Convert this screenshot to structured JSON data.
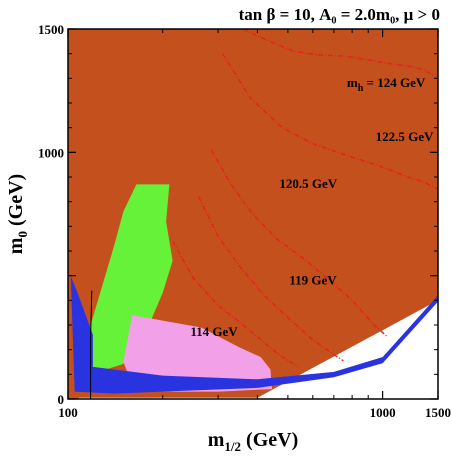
{
  "chart_data": {
    "type": "contour",
    "title": "tan β = 10, A₀ = 2.0m₀,  μ > 0",
    "xlabel": "m1/2 (GeV)",
    "xlabel_main": "m",
    "xlabel_sub": "1/2",
    "xlabel_unit": " (GeV)",
    "ylabel": "m0 (GeV)",
    "ylabel_main": "m",
    "ylabel_sub": "0",
    "ylabel_unit": " (GeV)",
    "xlim": [
      100,
      1500
    ],
    "ylim": [
      0,
      1500
    ],
    "x_ticks": [
      100,
      1000,
      1500
    ],
    "y_ticks": [
      0,
      1000,
      1500
    ],
    "x_tick_labels": [
      "100",
      "1000",
      "1500"
    ],
    "y_tick_labels": [
      "0",
      "1000",
      "1500"
    ],
    "grid": false,
    "colors": {
      "excluded": "#c4501e",
      "relic": "#2a33e0",
      "gminus2": "#f2a0e8",
      "bsgamma": "#66f238",
      "higgs_contour": "#e8201e",
      "chargino": "#000000"
    },
    "regions": [
      {
        "name": "charged-lsp-excluded",
        "color": "#c4501e",
        "points": [
          [
            370,
            1500
          ],
          [
            1500,
            1500
          ],
          [
            1500,
            1500
          ],
          [
            1500,
            400
          ],
          [
            400,
            5
          ],
          [
            100,
            5
          ],
          [
            100,
            1500
          ]
        ]
      },
      {
        "name": "left-excluded-wedge",
        "color": "#c4501e",
        "points": [
          [
            100,
            1500
          ],
          [
            310,
            1500
          ],
          [
            240,
            1200
          ],
          [
            170,
            900
          ],
          [
            135,
            600
          ],
          [
            120,
            320
          ],
          [
            108,
            0
          ],
          [
            100,
            0
          ]
        ]
      },
      {
        "name": "bsgamma-excluded",
        "color": "#66f238",
        "points": [
          [
            165,
            870
          ],
          [
            210,
            870
          ],
          [
            205,
            720
          ],
          [
            215,
            560
          ],
          [
            200,
            430
          ],
          [
            185,
            330
          ],
          [
            175,
            190
          ],
          [
            148,
            140
          ],
          [
            125,
            110
          ],
          [
            110,
            80
          ],
          [
            110,
            200
          ],
          [
            118,
            300
          ],
          [
            130,
            480
          ],
          [
            140,
            620
          ],
          [
            150,
            760
          ]
        ]
      },
      {
        "name": "gminus2-favoured",
        "color": "#f2a0e8",
        "points": [
          [
            160,
            340
          ],
          [
            265,
            290
          ],
          [
            350,
            210
          ],
          [
            410,
            170
          ],
          [
            440,
            120
          ],
          [
            445,
            40
          ],
          [
            300,
            30
          ],
          [
            200,
            30
          ],
          [
            160,
            60
          ],
          [
            150,
            150
          ]
        ]
      },
      {
        "name": "relic-density-strip",
        "color": "#2a33e0",
        "points": [
          [
            120,
            130
          ],
          [
            200,
            95
          ],
          [
            400,
            80
          ],
          [
            700,
            110
          ],
          [
            1000,
            170
          ],
          [
            1500,
            420
          ],
          [
            1500,
            395
          ],
          [
            1000,
            145
          ],
          [
            700,
            88
          ],
          [
            400,
            45
          ],
          [
            200,
            30
          ],
          [
            140,
            22
          ],
          [
            105,
            30
          ],
          [
            102,
            500
          ],
          [
            108,
            420
          ],
          [
            120,
            260
          ]
        ]
      }
    ],
    "series": [
      {
        "name": "m_h = 124 GeV",
        "style": "dash-dot",
        "x": [
          360,
          420,
          520,
          620,
          760,
          900,
          1050,
          1200,
          1350,
          1500
        ],
        "y": [
          1500,
          1460,
          1410,
          1395,
          1390,
          1375,
          1360,
          1350,
          1335,
          1300
        ]
      },
      {
        "name": "122.5 GeV",
        "style": "dash-dot",
        "x": [
          310,
          380,
          480,
          600,
          760,
          900,
          1050,
          1200,
          1350,
          1500
        ],
        "y": [
          1400,
          1220,
          1100,
          1035,
          990,
          960,
          930,
          900,
          880,
          850
        ]
      },
      {
        "name": "120.5 GeV",
        "style": "dash-dot",
        "x": [
          285,
          330,
          380,
          460,
          560,
          680,
          800,
          940,
          1030
        ],
        "y": [
          1010,
          870,
          760,
          650,
          570,
          480,
          400,
          300,
          255
        ]
      },
      {
        "name": "119 GeV",
        "style": "dash-dot",
        "x": [
          260,
          300,
          350,
          420,
          500,
          600,
          680,
          750
        ],
        "y": [
          820,
          660,
          540,
          420,
          330,
          240,
          190,
          155
        ]
      },
      {
        "name": "114 GeV",
        "style": "dash-dot",
        "x": [
          215,
          250,
          300,
          360,
          420,
          480,
          540
        ],
        "y": [
          640,
          490,
          380,
          300,
          230,
          170,
          130
        ]
      },
      {
        "name": "chargino-limit",
        "style": "solid",
        "x": [
          118,
          118,
          119
        ],
        "y": [
          0,
          250,
          440
        ]
      }
    ],
    "contour_labels": [
      {
        "text": "m",
        "sub": "h",
        "rest": "  = 124 GeV",
        "x": 770,
        "y": 1265
      },
      {
        "text": "122.5 GeV",
        "x": 950,
        "y": 1045
      },
      {
        "text": "120.5 GeV",
        "x": 470,
        "y": 855
      },
      {
        "text": "119 GeV",
        "x": 505,
        "y": 465
      },
      {
        "text": "114 GeV",
        "x": 245,
        "y": 255
      }
    ]
  }
}
